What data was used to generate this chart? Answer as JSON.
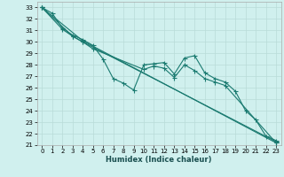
{
  "xlabel": "Humidex (Indice chaleur)",
  "xlim": [
    -0.5,
    23.5
  ],
  "ylim": [
    21,
    33.5
  ],
  "bg_color": "#d0f0ee",
  "grid_color": "#b8dbd8",
  "line_color": "#1a7a70",
  "lines_data": {
    "line1": {
      "x": [
        0,
        1,
        2,
        3,
        4,
        5,
        6,
        7,
        8,
        9,
        10,
        11,
        12,
        13,
        14,
        15,
        16,
        17,
        18,
        19,
        20,
        21,
        22,
        23
      ],
      "y": [
        33.0,
        32.5,
        31.2,
        30.6,
        30.2,
        29.7,
        28.5,
        26.8,
        26.4,
        25.8,
        28.0,
        28.1,
        28.2,
        27.2,
        28.6,
        28.8,
        27.3,
        26.8,
        26.5,
        25.7,
        24.0,
        23.2,
        21.8,
        21.4
      ]
    },
    "line2": {
      "x": [
        0,
        2,
        3,
        4,
        5,
        10,
        11,
        12,
        13,
        14,
        15,
        16,
        17,
        18,
        23
      ],
      "y": [
        33.0,
        31.1,
        30.5,
        30.0,
        29.4,
        27.6,
        27.9,
        27.7,
        26.9,
        28.0,
        27.5,
        26.8,
        26.5,
        26.2,
        21.2
      ]
    },
    "line3": {
      "x": [
        0,
        3,
        4,
        23
      ],
      "y": [
        33.0,
        30.5,
        30.0,
        21.3
      ]
    },
    "line4": {
      "x": [
        0,
        4,
        23
      ],
      "y": [
        33.0,
        30.1,
        21.2
      ]
    }
  },
  "xticks": [
    0,
    1,
    2,
    3,
    4,
    5,
    6,
    7,
    8,
    9,
    10,
    11,
    12,
    13,
    14,
    15,
    16,
    17,
    18,
    19,
    20,
    21,
    22,
    23
  ],
  "yticks": [
    21,
    22,
    23,
    24,
    25,
    26,
    27,
    28,
    29,
    30,
    31,
    32,
    33
  ],
  "tick_fontsize": 5.0,
  "xlabel_fontsize": 6.0,
  "lw": 0.8,
  "ms": 1.8
}
